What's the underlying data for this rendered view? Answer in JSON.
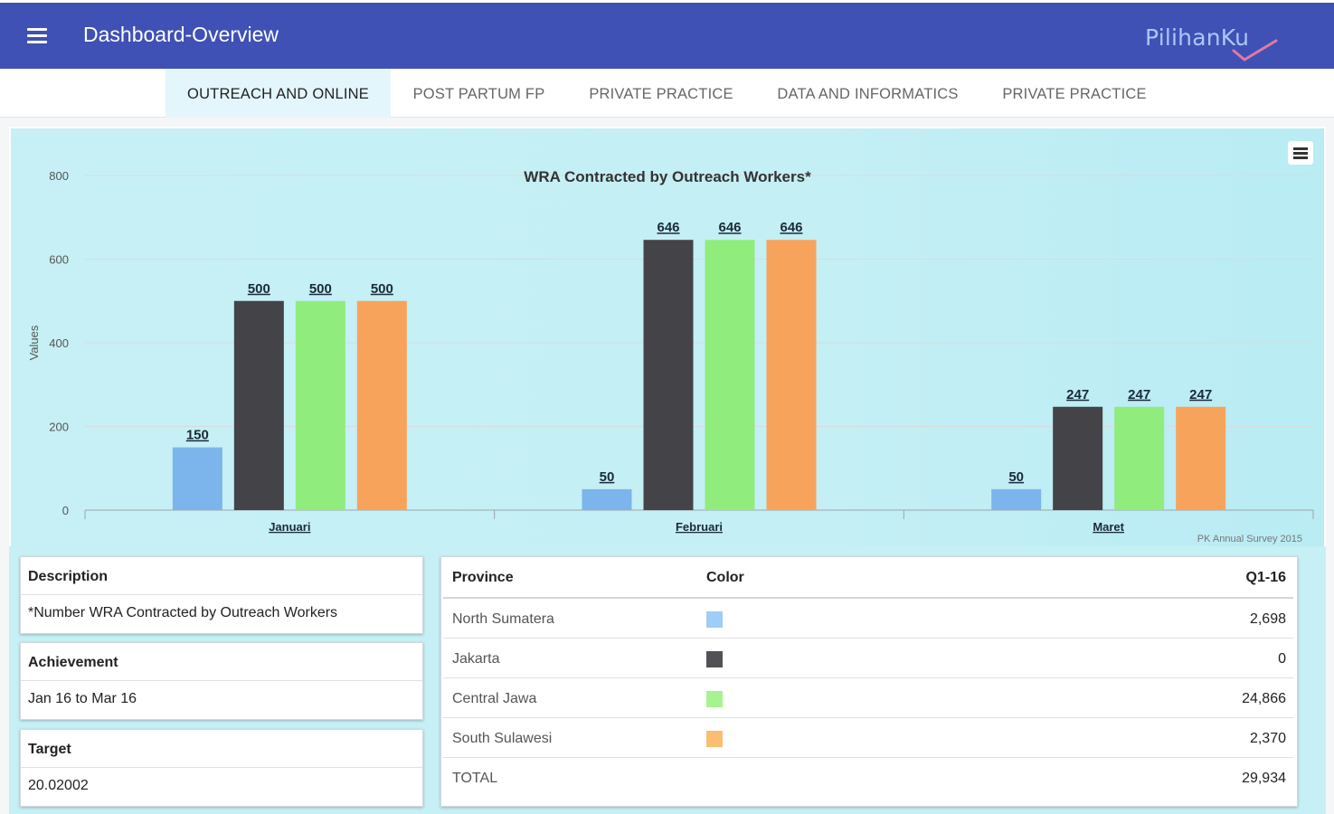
{
  "header": {
    "title": "Dashboard-Overview",
    "brand": "PilihanKu",
    "colors": {
      "bar": "#3f51b5"
    }
  },
  "tabs": [
    {
      "label": "OUTREACH AND ONLINE",
      "active": true
    },
    {
      "label": "POST PARTUM FP",
      "active": false
    },
    {
      "label": "PRIVATE PRACTICE",
      "active": false
    },
    {
      "label": "DATA AND INFORMATICS",
      "active": false
    },
    {
      "label": "PRIVATE PRACTICE",
      "active": false
    }
  ],
  "chart_data": {
    "type": "bar",
    "title": "WRA Contracted by Outreach Workers*",
    "ylabel": "Values",
    "xlabel": "",
    "ylim": [
      0,
      800
    ],
    "yticks": [
      0,
      200,
      400,
      600,
      800
    ],
    "categories": [
      "Januari",
      "Februari",
      "Maret"
    ],
    "series": [
      {
        "name": "North Sumatera",
        "color": "#7cb5ec",
        "values": [
          150,
          50,
          50
        ]
      },
      {
        "name": "Jakarta",
        "color": "#434348",
        "values": [
          500,
          646,
          247
        ]
      },
      {
        "name": "Central Jawa",
        "color": "#90ed7d",
        "values": [
          500,
          646,
          247
        ]
      },
      {
        "name": "South Sulawesi",
        "color": "#f7a35c",
        "values": [
          500,
          646,
          247
        ]
      }
    ],
    "credits": "PK Annual Survey 2015",
    "grid": true,
    "legend": "none"
  },
  "description": {
    "heading": "Description",
    "text": "*Number WRA Contracted by Outreach Workers"
  },
  "achievement": {
    "heading": "Achievement",
    "text": "Jan 16 to Mar 16"
  },
  "target": {
    "heading": "Target",
    "text": "20.02002"
  },
  "table": {
    "headers": {
      "province": "Province",
      "color": "Color",
      "value": "Q1-16"
    },
    "rows": [
      {
        "province": "North Sumatera",
        "color": "#9ecdf7",
        "value": "2,698"
      },
      {
        "province": "Jakarta",
        "color": "#515156",
        "value": "0"
      },
      {
        "province": "Central Jawa",
        "color": "#a6f48f",
        "value": "24,866"
      },
      {
        "province": "South Sulawesi",
        "color": "#fbbd72",
        "value": "2,370"
      }
    ],
    "total": {
      "label": "TOTAL",
      "value": "29,934"
    }
  }
}
